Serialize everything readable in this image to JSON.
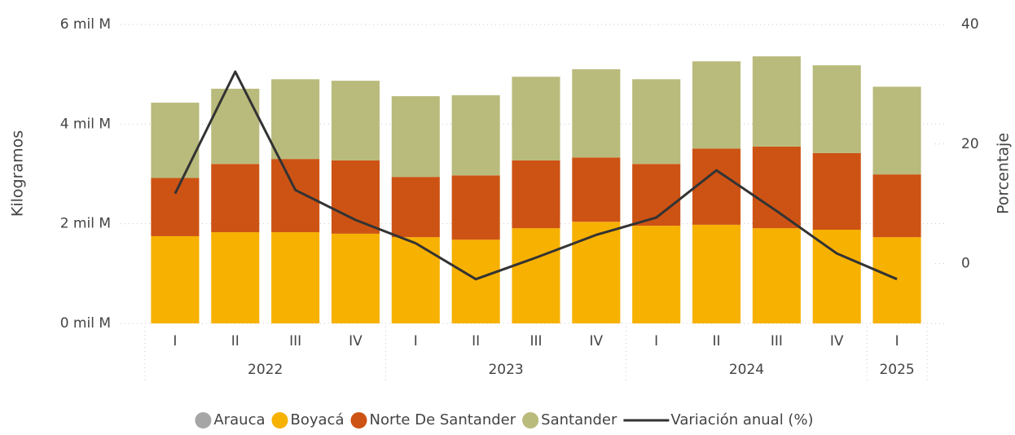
{
  "chart_data": {
    "type": "bar-line",
    "stacked": true,
    "ylabel": "Kilogramos",
    "y2label": "Porcentaje",
    "groups": [
      {
        "label": "2022",
        "categories": [
          "I",
          "II",
          "III",
          "IV"
        ]
      },
      {
        "label": "2023",
        "categories": [
          "I",
          "II",
          "III",
          "IV"
        ]
      },
      {
        "label": "2024",
        "categories": [
          "I",
          "II",
          "III",
          "IV"
        ]
      },
      {
        "label": "2025",
        "categories": [
          "I"
        ]
      }
    ],
    "series": [
      {
        "name": "Arauca",
        "color": "#a6a6a6",
        "values": [
          0,
          0,
          0,
          0,
          0,
          0,
          0,
          0,
          0,
          0,
          0,
          0,
          0
        ]
      },
      {
        "name": "Boyacá",
        "color": "#f7b100",
        "values": [
          1.75,
          1.83,
          1.83,
          1.8,
          1.73,
          1.68,
          1.91,
          2.04,
          1.96,
          1.98,
          1.91,
          1.88,
          1.73
        ]
      },
      {
        "name": "Norte De Santander",
        "color": "#cd5314",
        "values": [
          1.17,
          1.37,
          1.47,
          1.47,
          1.21,
          1.29,
          1.36,
          1.29,
          1.24,
          1.53,
          1.64,
          1.54,
          1.26
        ]
      },
      {
        "name": "Santander",
        "color": "#b9bb7c",
        "values": [
          1.51,
          1.51,
          1.6,
          1.6,
          1.62,
          1.61,
          1.68,
          1.77,
          1.7,
          1.75,
          1.81,
          1.76,
          1.76
        ]
      },
      {
        "name": "Variación anual (%)",
        "color": "#333333",
        "type": "line",
        "axis": "y2",
        "values": [
          11.7,
          32.1,
          12.3,
          7.3,
          3.4,
          -2.6,
          1.0,
          4.8,
          7.7,
          15.6,
          8.8,
          1.7,
          -2.6
        ]
      }
    ],
    "ylim": [
      0,
      6
    ],
    "yticks": [
      {
        "value": 0,
        "label": "0 mil M"
      },
      {
        "value": 2,
        "label": "2 mil M"
      },
      {
        "value": 4,
        "label": "4 mil M"
      },
      {
        "value": 6,
        "label": "6 mil M"
      }
    ],
    "y2lim": [
      -10,
      40
    ],
    "y2ticks": [
      0,
      20,
      40
    ],
    "grid": true,
    "legend": "bottom"
  }
}
